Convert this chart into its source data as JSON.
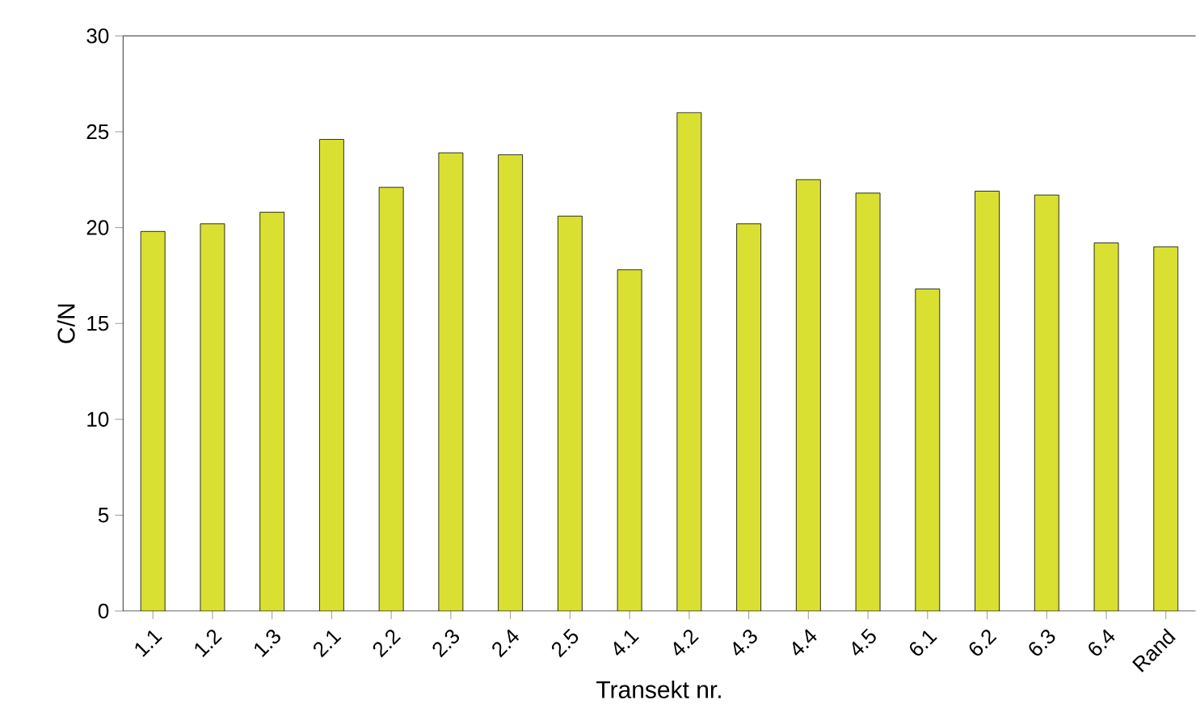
{
  "chart_data": {
    "type": "bar",
    "xlabel": "Transekt nr.",
    "ylabel": "C/N",
    "categories": [
      "1.1",
      "1.2",
      "1.3",
      "2.1",
      "2.2",
      "2.3",
      "2.4",
      "2.5",
      "4.1",
      "4.2",
      "4.3",
      "4.4",
      "4.5",
      "6.1",
      "6.2",
      "6.3",
      "6.4",
      "Rand"
    ],
    "values": [
      19.8,
      20.2,
      20.8,
      24.6,
      22.1,
      23.9,
      23.8,
      20.6,
      17.8,
      26.0,
      20.2,
      22.5,
      21.8,
      16.8,
      21.9,
      21.7,
      19.2,
      19.0
    ],
    "color": "#d9e032",
    "ylim": [
      0,
      30
    ],
    "yticks": [
      0,
      5,
      10,
      15,
      20,
      25,
      30
    ],
    "grid": false
  }
}
